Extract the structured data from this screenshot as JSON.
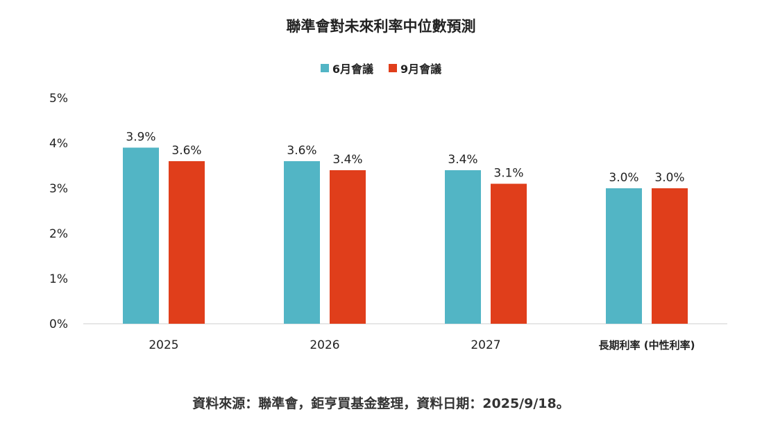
{
  "chart_data": {
    "type": "bar",
    "title": "聯準會對未來利率中位數預測",
    "categories": [
      "2025",
      "2026",
      "2027",
      "長期利率 (中性利率)"
    ],
    "series": [
      {
        "name": "6月會議",
        "color": "#52B5C5",
        "values": [
          3.9,
          3.6,
          3.4,
          3.0
        ],
        "labels": [
          "3.9%",
          "3.6%",
          "3.4%",
          "3.0%"
        ]
      },
      {
        "name": "9月會議",
        "color": "#E03E1B",
        "values": [
          3.6,
          3.4,
          3.1,
          3.0
        ],
        "labels": [
          "3.6%",
          "3.4%",
          "3.1%",
          "3.0%"
        ]
      }
    ],
    "yticks": [
      "0%",
      "1%",
      "2%",
      "3%",
      "4%",
      "5%"
    ],
    "ylim": [
      0,
      5
    ],
    "xlabel": "",
    "ylabel": "",
    "grid": false,
    "legend": "top-center"
  },
  "source": "資料來源：聯準會，鉅亨買基金整理，資料日期：2025/9/18。"
}
